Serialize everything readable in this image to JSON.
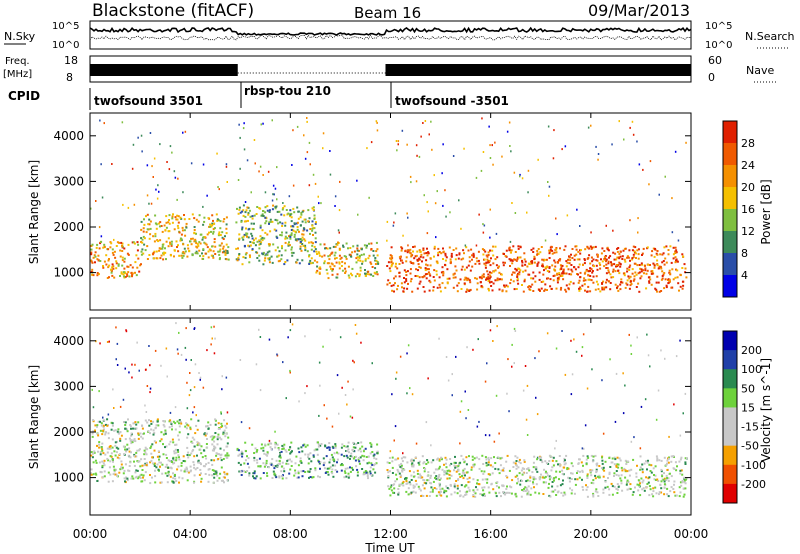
{
  "header": {
    "title_left": "Blackstone (fitACF)",
    "title_center": "Beam 16",
    "title_right": "09/Mar/2013"
  },
  "noise_panel": {
    "left_label": "N.Sky",
    "right_label": "N.Search",
    "tick_top": "10^5",
    "tick_bottom": "10^0"
  },
  "freq_panel": {
    "left_label_1": "Freq.",
    "left_label_2": "[MHz]",
    "right_label": "Nave",
    "left_ticks": [
      "18",
      "8"
    ],
    "right_ticks": [
      "60",
      "0"
    ]
  },
  "cpid": {
    "label": "CPID",
    "segments": [
      {
        "start_hour": 0.0,
        "end_hour": 5.9,
        "label": "twofsound 3501"
      },
      {
        "start_hour": 5.9,
        "end_hour": 11.8,
        "label": "rbsp-tou 210"
      },
      {
        "start_hour": 11.8,
        "end_hour": 24.0,
        "label": "twofsound -3501"
      }
    ]
  },
  "colors": {
    "power": [
      "#0000e6",
      "#2a4ea8",
      "#3d8a5a",
      "#7fbf3f",
      "#f5c000",
      "#f59000",
      "#f05a00",
      "#e02000"
    ],
    "velocity": [
      "#e00000",
      "#f05000",
      "#f5a000",
      "#c8c8c8",
      "#c8c8c8",
      "#6ed23c",
      "#2a8a50",
      "#2040a8",
      "#0000b0"
    ]
  },
  "chart_data": [
    {
      "type": "heatmap",
      "panel": "power",
      "ylabel": "Slant Range [km]",
      "ylim": [
        180,
        4500
      ],
      "y_ticks": [
        "1000",
        "2000",
        "3000",
        "4000"
      ],
      "xlim_hours": [
        0,
        24
      ],
      "colorbar": {
        "label": "Power [dB]",
        "ticks": [
          "28",
          "24",
          "20",
          "16",
          "12",
          "8",
          "4"
        ],
        "range": [
          0,
          30
        ]
      },
      "bands": [
        {
          "start_hour": 0.0,
          "end_hour": 2.0,
          "range_km": [
            900,
            1700
          ],
          "level_db": 20
        },
        {
          "start_hour": 2.0,
          "end_hour": 5.5,
          "range_km": [
            1300,
            2300
          ],
          "level_db": 17
        },
        {
          "start_hour": 5.8,
          "end_hour": 9.0,
          "range_km": [
            1200,
            2500
          ],
          "level_db": 14
        },
        {
          "start_hour": 9.0,
          "end_hour": 11.5,
          "range_km": [
            900,
            1700
          ],
          "level_db": 18
        },
        {
          "start_hour": 11.8,
          "end_hour": 23.8,
          "range_km": [
            600,
            1600
          ],
          "level_db": 24
        }
      ]
    },
    {
      "type": "heatmap",
      "panel": "velocity",
      "ylabel": "Slant Range [km]",
      "ylim": [
        180,
        4500
      ],
      "y_ticks": [
        "1000",
        "2000",
        "3000",
        "4000"
      ],
      "xlim_hours": [
        0,
        24
      ],
      "colorbar": {
        "label": "Velocity [m s^-1]",
        "ticks": [
          "200",
          "100",
          "50",
          "15",
          "-15",
          "-50",
          "-100",
          "-200"
        ],
        "range": [
          -250,
          250
        ]
      },
      "bands": [
        {
          "start_hour": 0.0,
          "end_hour": 5.5,
          "range_km": [
            900,
            2300
          ],
          "velocity_ms": 0
        },
        {
          "start_hour": 5.8,
          "end_hour": 11.5,
          "range_km": [
            1000,
            1800
          ],
          "velocity_ms": 40
        },
        {
          "start_hour": 11.8,
          "end_hour": 23.8,
          "range_km": [
            600,
            1500
          ],
          "velocity_ms": -20
        }
      ]
    }
  ],
  "x_axis": {
    "label": "Time UT",
    "ticks": [
      "00:00",
      "04:00",
      "08:00",
      "12:00",
      "16:00",
      "20:00",
      "00:00"
    ]
  }
}
